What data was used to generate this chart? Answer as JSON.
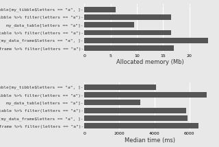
{
  "labels": [
    "my_tibble[my_tibble$letters == \"a\", ]-",
    "my_tibble %>% filter(letters == \"a\")-",
    "my_data_table[letters == \"a\"]-",
    "y_data_table %>% filter(letters == \"a\")-",
    "frame[my_data_frame$letters == \"a\", ]-",
    "_data_frame %>% filter(letters == \"a\")-"
  ],
  "memory_values": [
    6.0,
    16.5,
    9.5,
    16.5,
    23.5,
    17.0
  ],
  "time_values": [
    4100,
    7000,
    3200,
    5800,
    5900,
    6500
  ],
  "bar_color": "#555555",
  "bg_color": "#e8e8e8",
  "panel_bg": "#e8e8e8",
  "grid_color": "#ffffff",
  "xlabel_memory": "Allocated memory (Mb)",
  "xlabel_time": "Median time (ms)",
  "xlim_memory": [
    0,
    25
  ],
  "xlim_time": [
    0,
    7500
  ],
  "xticks_memory": [
    0,
    5,
    10,
    15,
    20
  ],
  "xticks_time": [
    0,
    2000,
    4000,
    6000
  ],
  "fontsize": 4.5,
  "bar_height": 0.7
}
